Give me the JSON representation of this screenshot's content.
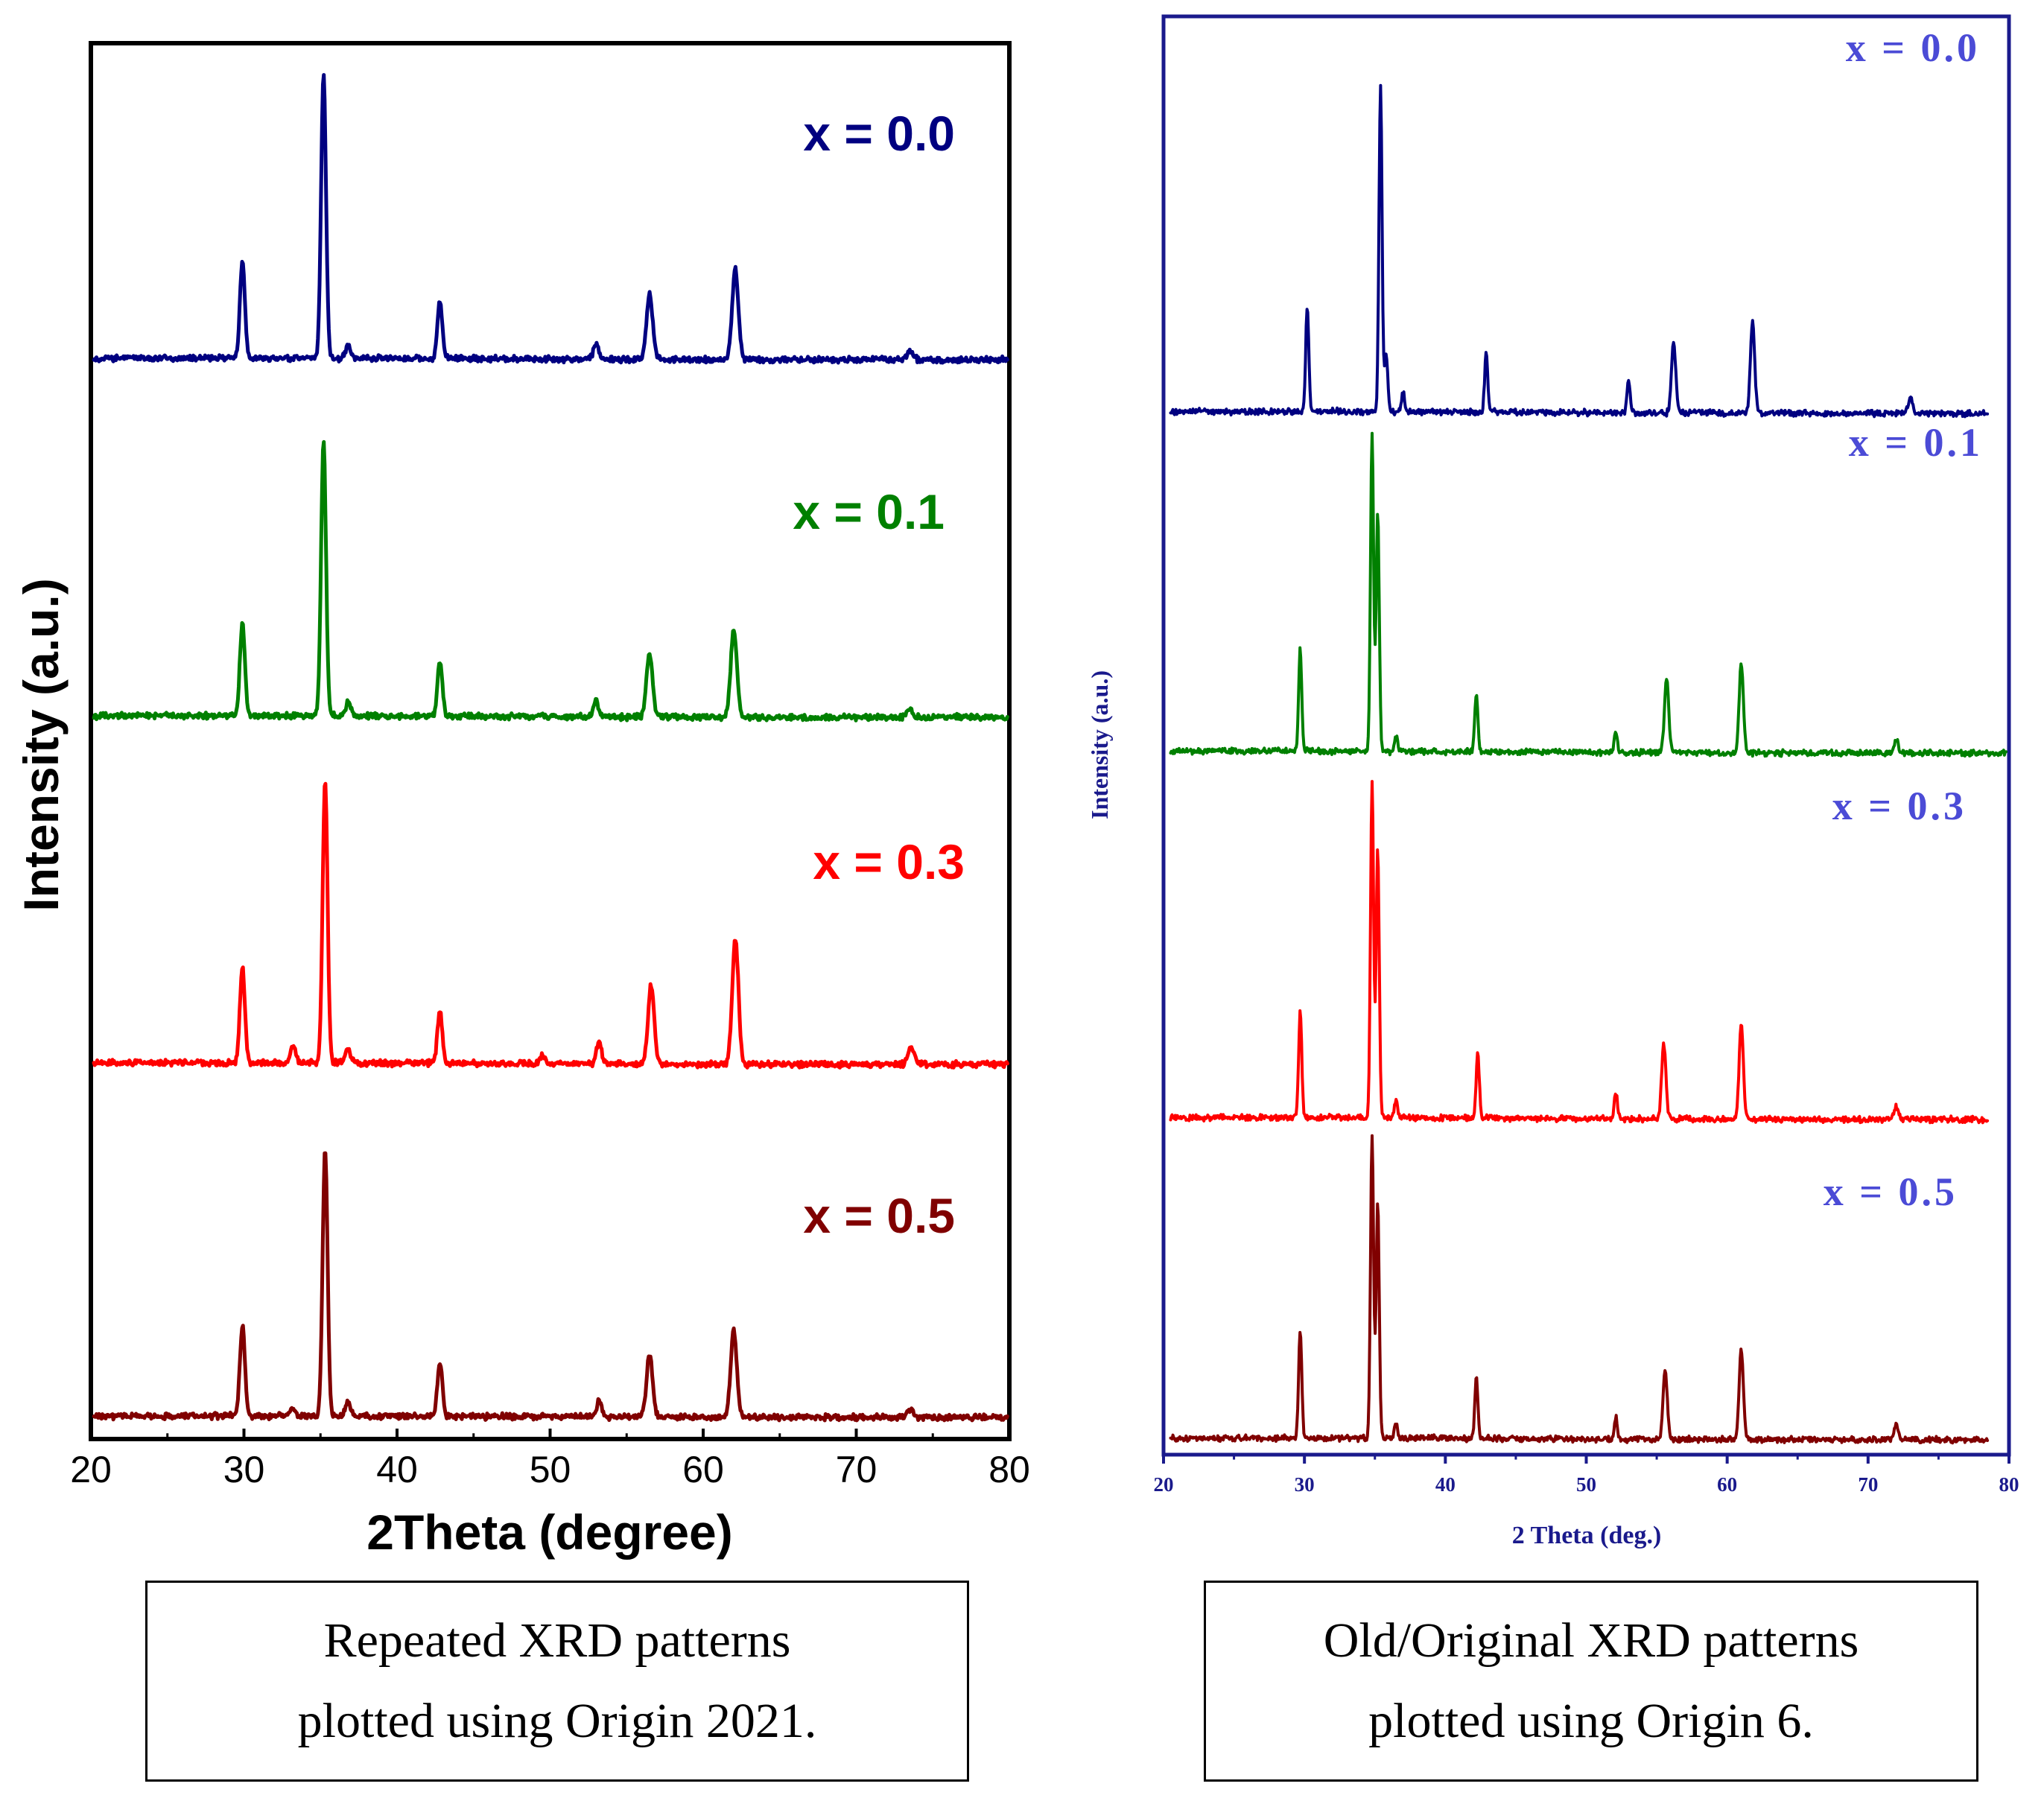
{
  "figure": {
    "left_caption": [
      "Repeated XRD patterns",
      "plotted using Origin 2021."
    ],
    "right_caption": [
      "Old/Original XRD patterns",
      "plotted using Origin 6."
    ]
  },
  "chart_data": [
    {
      "type": "line",
      "panel": "left",
      "title": "",
      "xlabel": "2Theta (degree)",
      "ylabel": "Intensity (a.u.)",
      "xlim": [
        20,
        80
      ],
      "xticks": [
        20,
        30,
        40,
        50,
        60,
        70,
        80
      ],
      "yticks": [],
      "grid": false,
      "legend": "inline labels at top-right of each trace",
      "colors": {
        "axis": "#000000",
        "text": "#000000"
      },
      "series": [
        {
          "name": "x = 0.5",
          "color": "#800000",
          "offset": 3.0,
          "peaks": [
            [
              29.9,
              0.34
            ],
            [
              33.2,
              0.025
            ],
            [
              35.3,
              1.0
            ],
            [
              36.8,
              0.05
            ],
            [
              42.8,
              0.2
            ],
            [
              53.2,
              0.06
            ],
            [
              56.5,
              0.23
            ],
            [
              62.0,
              0.32
            ],
            [
              73.5,
              0.03
            ]
          ]
        },
        {
          "name": "x = 0.3",
          "color": "#ff0000",
          "offset": 2.0,
          "peaks": [
            [
              29.9,
              0.34
            ],
            [
              33.2,
              0.06
            ],
            [
              35.3,
              1.0
            ],
            [
              36.8,
              0.05
            ],
            [
              42.8,
              0.18
            ],
            [
              49.5,
              0.03
            ],
            [
              53.2,
              0.08
            ],
            [
              56.6,
              0.28
            ],
            [
              62.1,
              0.45
            ],
            [
              73.6,
              0.06
            ]
          ]
        },
        {
          "name": "x = 0.1",
          "color": "#008000",
          "offset": 1.0,
          "peaks": [
            [
              29.9,
              0.34
            ],
            [
              35.2,
              1.0
            ],
            [
              36.8,
              0.05
            ],
            [
              42.8,
              0.2
            ],
            [
              53.0,
              0.06
            ],
            [
              56.5,
              0.23
            ],
            [
              62.0,
              0.32
            ],
            [
              73.5,
              0.03
            ]
          ]
        },
        {
          "name": "x = 0.0",
          "color": "#000080",
          "offset": 0.0,
          "peaks": [
            [
              29.9,
              0.34
            ],
            [
              35.2,
              1.0
            ],
            [
              36.8,
              0.05
            ],
            [
              42.8,
              0.2
            ],
            [
              53.0,
              0.06
            ],
            [
              56.5,
              0.23
            ],
            [
              62.1,
              0.32
            ],
            [
              73.5,
              0.03
            ]
          ]
        }
      ]
    },
    {
      "type": "line",
      "panel": "right",
      "title": "",
      "xlabel": "2 Theta (deg.)",
      "ylabel": "Intensity (a.u.)",
      "xlim": [
        20,
        80
      ],
      "xticks": [
        20,
        30,
        40,
        50,
        60,
        70,
        80
      ],
      "yticks": [],
      "grid": false,
      "legend": "inline labels at top-right of each trace",
      "colors": {
        "axis": "#1a1a8c",
        "text": "#1a1a8c",
        "labels": "#4b4bd6"
      },
      "series": [
        {
          "name": "x = 0.5",
          "color": "#800000",
          "offset": 3.0,
          "peaks": [
            [
              29.7,
              0.36
            ],
            [
              34.8,
              1.0
            ],
            [
              35.2,
              0.78
            ],
            [
              36.5,
              0.05
            ],
            [
              42.2,
              0.2
            ],
            [
              52.1,
              0.07
            ],
            [
              55.6,
              0.23
            ],
            [
              61.0,
              0.3
            ],
            [
              72.0,
              0.05
            ]
          ]
        },
        {
          "name": "x = 0.3",
          "color": "#ff0000",
          "offset": 2.0,
          "peaks": [
            [
              29.7,
              0.32
            ],
            [
              34.8,
              1.0
            ],
            [
              35.2,
              0.8
            ],
            [
              36.5,
              0.05
            ],
            [
              42.3,
              0.2
            ],
            [
              52.1,
              0.08
            ],
            [
              55.5,
              0.22
            ],
            [
              61.0,
              0.28
            ],
            [
              72.0,
              0.04
            ]
          ]
        },
        {
          "name": "x = 0.1",
          "color": "#008000",
          "offset": 1.0,
          "peaks": [
            [
              29.7,
              0.32
            ],
            [
              34.8,
              1.0
            ],
            [
              35.2,
              0.76
            ],
            [
              36.5,
              0.05
            ],
            [
              42.2,
              0.18
            ],
            [
              52.1,
              0.07
            ],
            [
              55.7,
              0.23
            ],
            [
              61.0,
              0.28
            ],
            [
              72.0,
              0.04
            ]
          ]
        },
        {
          "name": "x = 0.0",
          "color": "#000080",
          "offset": 0.0,
          "peaks": [
            [
              30.2,
              0.32
            ],
            [
              35.4,
              1.0
            ],
            [
              35.8,
              0.18
            ],
            [
              37.0,
              0.06
            ],
            [
              42.9,
              0.18
            ],
            [
              53.0,
              0.1
            ],
            [
              56.2,
              0.22
            ],
            [
              61.8,
              0.28
            ],
            [
              73.0,
              0.05
            ]
          ]
        }
      ]
    }
  ]
}
